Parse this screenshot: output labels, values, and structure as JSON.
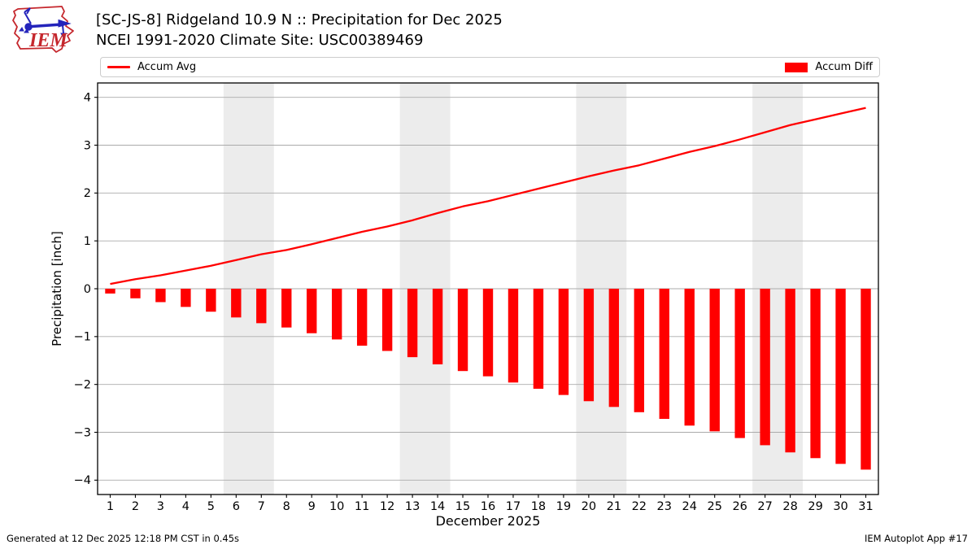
{
  "header": {
    "title_line1": "[SC-JS-8] Ridgeland 10.9 N :: Precipitation for Dec 2025",
    "title_line2": "NCEI 1991-2020 Climate Site: USC00389469",
    "logo_text": "IEM"
  },
  "legend": {
    "avg_label": "Accum Avg",
    "diff_label": "Accum Diff"
  },
  "footer": {
    "left": "Generated at 12 Dec 2025 12:18 PM CST in 0.45s",
    "right": "IEM Autoplot App #17"
  },
  "colors": {
    "series_red": "#ff0000",
    "grid": "#ababab",
    "weekend_band": "#ececec",
    "spine": "#000000",
    "legend_border": "#cccccc",
    "logo_red": "#c5272d",
    "logo_blue": "#2424bb"
  },
  "chart_data": {
    "type": "line+bar",
    "title": "[SC-JS-8] Ridgeland 10.9 N :: Precipitation for Dec 2025",
    "subtitle": "NCEI 1991-2020 Climate Site: USC00389469",
    "xlabel": "December 2025",
    "ylabel": "Precipitation [inch]",
    "x": [
      1,
      2,
      3,
      4,
      5,
      6,
      7,
      8,
      9,
      10,
      11,
      12,
      13,
      14,
      15,
      16,
      17,
      18,
      19,
      20,
      21,
      22,
      23,
      24,
      25,
      26,
      27,
      28,
      29,
      30,
      31
    ],
    "series": [
      {
        "name": "Accum Avg",
        "type": "line",
        "color": "#ff0000",
        "values": [
          0.1,
          0.2,
          0.28,
          0.38,
          0.48,
          0.6,
          0.72,
          0.81,
          0.93,
          1.06,
          1.19,
          1.3,
          1.43,
          1.58,
          1.72,
          1.83,
          1.96,
          2.09,
          2.22,
          2.35,
          2.47,
          2.58,
          2.72,
          2.86,
          2.98,
          3.12,
          3.27,
          3.42,
          3.54,
          3.66,
          3.78
        ]
      },
      {
        "name": "Accum Diff",
        "type": "bar",
        "color": "#ff0000",
        "values": [
          -0.1,
          -0.2,
          -0.28,
          -0.38,
          -0.48,
          -0.6,
          -0.72,
          -0.81,
          -0.93,
          -1.06,
          -1.19,
          -1.3,
          -1.43,
          -1.58,
          -1.72,
          -1.83,
          -1.96,
          -2.09,
          -2.22,
          -2.35,
          -2.47,
          -2.58,
          -2.72,
          -2.86,
          -2.98,
          -3.12,
          -3.27,
          -3.42,
          -3.54,
          -3.66,
          -3.78
        ]
      }
    ],
    "ylim": [
      -4.3,
      4.3
    ],
    "ytick_values": [
      -4,
      -3,
      -2,
      -1,
      0,
      1,
      2,
      3,
      4
    ],
    "ytick_labels": [
      "−4",
      "−3",
      "−2",
      "−1",
      "0",
      "1",
      "2",
      "3",
      "4"
    ],
    "weekend_bands": [
      [
        5.5,
        7.5
      ],
      [
        12.5,
        14.5
      ],
      [
        19.5,
        21.5
      ],
      [
        26.5,
        28.5
      ]
    ],
    "grid": "horizontal",
    "legend_position": "top"
  }
}
